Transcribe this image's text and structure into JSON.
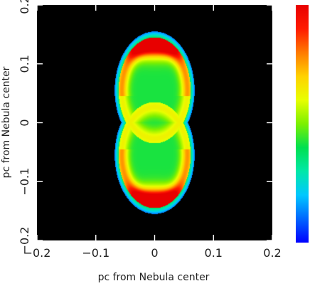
{
  "chart_data": {
    "type": "heatmap",
    "title": "",
    "xlabel": "pc from Nebula center",
    "ylabel": "pc from Nebula center",
    "xlim": [
      -0.2,
      0.2
    ],
    "ylim": [
      -0.2,
      0.2
    ],
    "x_ticks": [
      -0.2,
      -0.1,
      0,
      0.1,
      0.2
    ],
    "y_ticks": [
      -0.2,
      -0.1,
      0,
      0.1,
      0.2
    ],
    "x_tick_labels": [
      "−0.2",
      "−0.1",
      "0",
      "0.1",
      "0.2"
    ],
    "y_tick_labels": [
      "−0.2",
      "−0.1",
      "0",
      "0.1",
      "0.2"
    ],
    "background": "#000000",
    "colormap": [
      "#0000ff",
      "#0066ff",
      "#00c8ff",
      "#00e8a8",
      "#00e050",
      "#7cf000",
      "#e8ff00",
      "#ffd200",
      "#ff7a00",
      "#ff1a00",
      "#e80000"
    ],
    "colorbar": {
      "orientation": "vertical",
      "labels": []
    },
    "features": {
      "shape": "bipolar lobes (figure-eight) along vertical axis",
      "upper_lobe": {
        "center": [
          0,
          0.055
        ],
        "x_halfwidth": 0.068,
        "y_halfwidth": 0.1,
        "peak_ring_y": 0.132
      },
      "lower_lobe": {
        "center": [
          0,
          -0.055
        ],
        "x_halfwidth": 0.068,
        "y_halfwidth": 0.1,
        "peak_ring_y": -0.132
      },
      "waist": [
        0,
        0
      ],
      "rim": "blue",
      "core": "green",
      "peak": "red"
    }
  }
}
